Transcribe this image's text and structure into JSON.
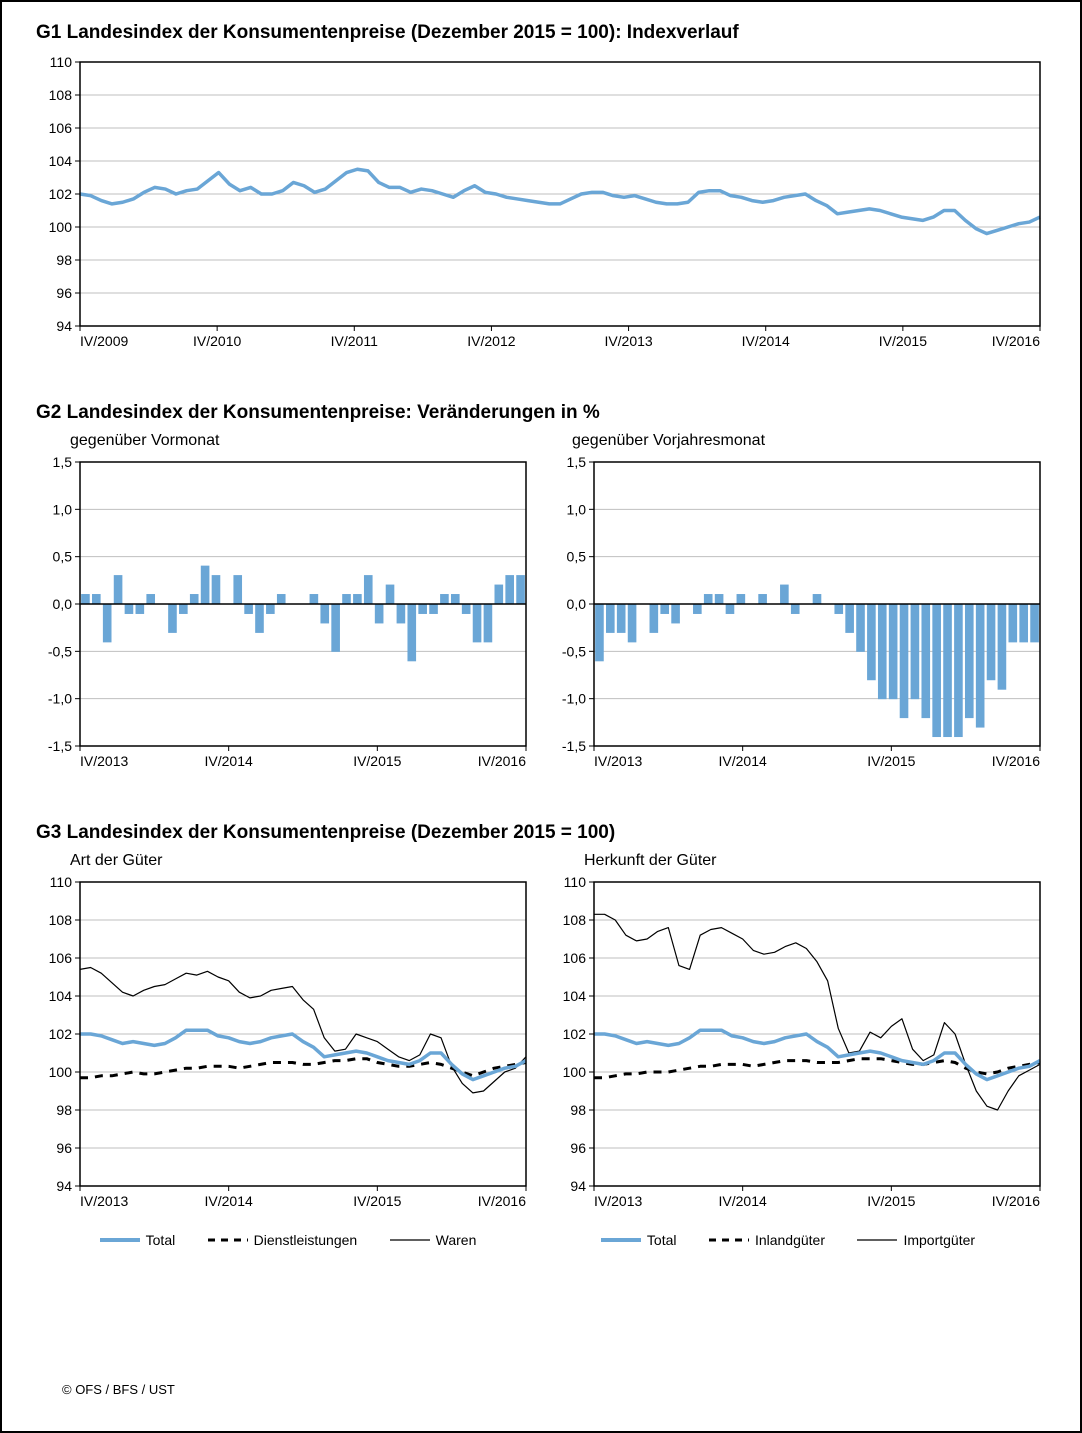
{
  "colors": {
    "blue": "#6aa6d6",
    "black": "#000000",
    "grid": "#bfbfbf",
    "border": "#000000",
    "background": "#ffffff"
  },
  "g1": {
    "title": "G1   Landesindex der Konsumentenpreise (Dezember 2015 = 100): Indexverlauf",
    "ylim": [
      94,
      110
    ],
    "ytick_step": 2,
    "xlabels": [
      "IV/2009",
      "IV/2010",
      "IV/2011",
      "IV/2012",
      "IV/2013",
      "IV/2014",
      "IV/2015",
      "IV/2016"
    ],
    "line_color": "#6aa6d6",
    "line_width": 3.5,
    "series": [
      102.0,
      101.9,
      101.6,
      101.4,
      101.5,
      101.7,
      102.1,
      102.4,
      102.3,
      102.0,
      102.2,
      102.3,
      102.8,
      103.3,
      102.6,
      102.2,
      102.4,
      102.0,
      102.0,
      102.2,
      102.7,
      102.5,
      102.1,
      102.3,
      102.8,
      103.3,
      103.5,
      103.4,
      102.7,
      102.4,
      102.4,
      102.1,
      102.3,
      102.2,
      102.0,
      101.8,
      102.2,
      102.5,
      102.1,
      102.0,
      101.8,
      101.7,
      101.6,
      101.5,
      101.4,
      101.4,
      101.7,
      102.0,
      102.1,
      102.1,
      101.9,
      101.8,
      101.9,
      101.7,
      101.5,
      101.4,
      101.4,
      101.5,
      102.1,
      102.2,
      102.2,
      101.9,
      101.8,
      101.6,
      101.5,
      101.6,
      101.8,
      101.9,
      102.0,
      101.6,
      101.3,
      100.8,
      100.9,
      101.0,
      101.1,
      101.0,
      100.8,
      100.6,
      100.5,
      100.4,
      100.6,
      101.0,
      101.0,
      100.4,
      99.9,
      99.6,
      99.8,
      100.0,
      100.2,
      100.3,
      100.6
    ]
  },
  "g2": {
    "title": "G2   Landesindex der Konsumentenpreise: Veränderungen in %",
    "subtitle_left": "gegenüber Vormonat",
    "subtitle_right": "gegenüber Vorjahresmonat",
    "ylim": [
      -1.5,
      1.5
    ],
    "ytick_step": 0.5,
    "xlabels": [
      "IV/2013",
      "IV/2014",
      "IV/2015",
      "IV/2016"
    ],
    "bar_color": "#6aa6d6",
    "left_values": [
      0.1,
      0.1,
      -0.4,
      0.3,
      -0.1,
      -0.1,
      0.1,
      0.0,
      -0.3,
      -0.1,
      0.1,
      0.4,
      0.3,
      0.0,
      0.3,
      -0.1,
      -0.3,
      -0.1,
      0.1,
      0.0,
      0.0,
      0.1,
      -0.2,
      -0.5,
      0.1,
      0.1,
      0.3,
      -0.2,
      0.2,
      -0.2,
      -0.6,
      -0.1,
      -0.1,
      0.1,
      0.1,
      -0.1,
      -0.4,
      -0.4,
      0.2,
      0.3,
      0.3
    ],
    "right_values": [
      -0.6,
      -0.3,
      -0.3,
      -0.4,
      0.0,
      -0.3,
      -0.1,
      -0.2,
      0.0,
      -0.1,
      0.1,
      0.1,
      -0.1,
      0.1,
      0.0,
      0.1,
      0.0,
      0.2,
      -0.1,
      0.0,
      0.1,
      0.0,
      -0.1,
      -0.3,
      -0.5,
      -0.8,
      -1.0,
      -1.0,
      -1.2,
      -1.0,
      -1.2,
      -1.4,
      -1.4,
      -1.4,
      -1.2,
      -1.3,
      -0.8,
      -0.9,
      -0.4,
      -0.4,
      -0.4
    ]
  },
  "g3": {
    "title": "G3   Landesindex der Konsumentenpreise (Dezember 2015 = 100)",
    "subtitle_left": "Art der Güter",
    "subtitle_right": "Herkunft der Güter",
    "ylim": [
      94,
      110
    ],
    "ytick_step": 2,
    "xlabels": [
      "IV/2013",
      "IV/2014",
      "IV/2015",
      "IV/2016"
    ],
    "legend_left": [
      "Total",
      "Dienstleistungen",
      "Waren"
    ],
    "legend_right": [
      "Total",
      "Inlandgüter",
      "Importgüter"
    ],
    "total": [
      102.0,
      102.0,
      101.9,
      101.7,
      101.5,
      101.6,
      101.5,
      101.4,
      101.5,
      101.8,
      102.2,
      102.2,
      102.2,
      101.9,
      101.8,
      101.6,
      101.5,
      101.6,
      101.8,
      101.9,
      102.0,
      101.6,
      101.3,
      100.8,
      100.9,
      101.0,
      101.1,
      101.0,
      100.8,
      100.6,
      100.5,
      100.4,
      100.6,
      101.0,
      101.0,
      100.4,
      99.9,
      99.6,
      99.8,
      100.0,
      100.2,
      100.3,
      100.6
    ],
    "dienst": [
      99.7,
      99.7,
      99.8,
      99.8,
      99.9,
      100.0,
      99.9,
      99.9,
      100.0,
      100.1,
      100.2,
      100.2,
      100.3,
      100.3,
      100.3,
      100.2,
      100.3,
      100.4,
      100.5,
      100.5,
      100.5,
      100.4,
      100.4,
      100.5,
      100.6,
      100.6,
      100.7,
      100.7,
      100.5,
      100.4,
      100.3,
      100.3,
      100.4,
      100.5,
      100.4,
      100.2,
      100.0,
      99.8,
      100.0,
      100.2,
      100.3,
      100.4,
      100.5
    ],
    "waren": [
      105.4,
      105.5,
      105.2,
      104.7,
      104.2,
      104.0,
      104.3,
      104.5,
      104.6,
      104.9,
      105.2,
      105.1,
      105.3,
      105.0,
      104.8,
      104.2,
      103.9,
      104.0,
      104.3,
      104.4,
      104.5,
      103.8,
      103.3,
      101.8,
      101.1,
      101.2,
      102.0,
      101.8,
      101.6,
      101.2,
      100.8,
      100.6,
      100.9,
      102.0,
      101.8,
      100.3,
      99.4,
      98.9,
      99.0,
      99.5,
      100.0,
      100.2,
      100.8
    ],
    "inland": [
      99.7,
      99.7,
      99.8,
      99.9,
      99.9,
      100.0,
      100.0,
      100.0,
      100.1,
      100.2,
      100.3,
      100.3,
      100.4,
      100.4,
      100.4,
      100.3,
      100.4,
      100.5,
      100.6,
      100.6,
      100.6,
      100.5,
      100.5,
      100.5,
      100.6,
      100.7,
      100.7,
      100.7,
      100.6,
      100.5,
      100.4,
      100.4,
      100.5,
      100.6,
      100.5,
      100.2,
      100.0,
      99.9,
      100.0,
      100.2,
      100.3,
      100.4,
      100.5
    ],
    "import": [
      108.3,
      108.3,
      108.0,
      107.2,
      106.9,
      107.0,
      107.4,
      107.6,
      105.6,
      105.4,
      107.2,
      107.5,
      107.6,
      107.3,
      107.0,
      106.4,
      106.2,
      106.3,
      106.6,
      106.8,
      106.5,
      105.8,
      104.8,
      102.3,
      101.0,
      101.1,
      102.1,
      101.8,
      102.4,
      102.8,
      101.2,
      100.6,
      100.9,
      102.6,
      102.0,
      100.4,
      99.0,
      98.2,
      98.0,
      99.0,
      99.8,
      100.1,
      100.4
    ]
  },
  "footer": "© OFS / BFS / UST"
}
